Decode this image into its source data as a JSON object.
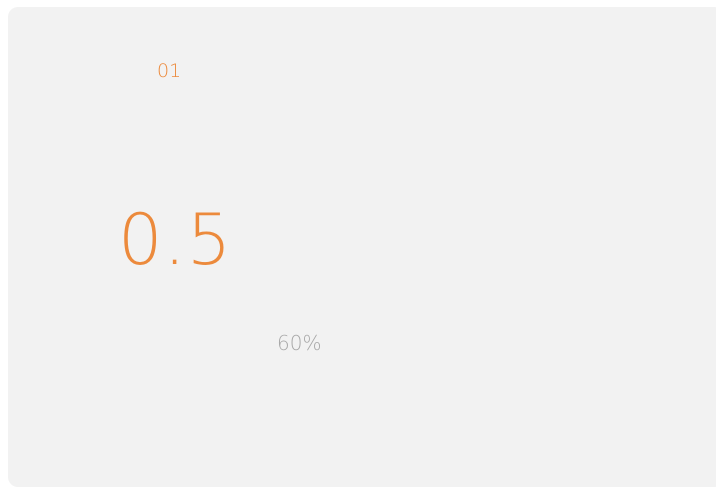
{
  "card": {
    "index": "01",
    "value": "0.5",
    "percent": "60%"
  }
}
